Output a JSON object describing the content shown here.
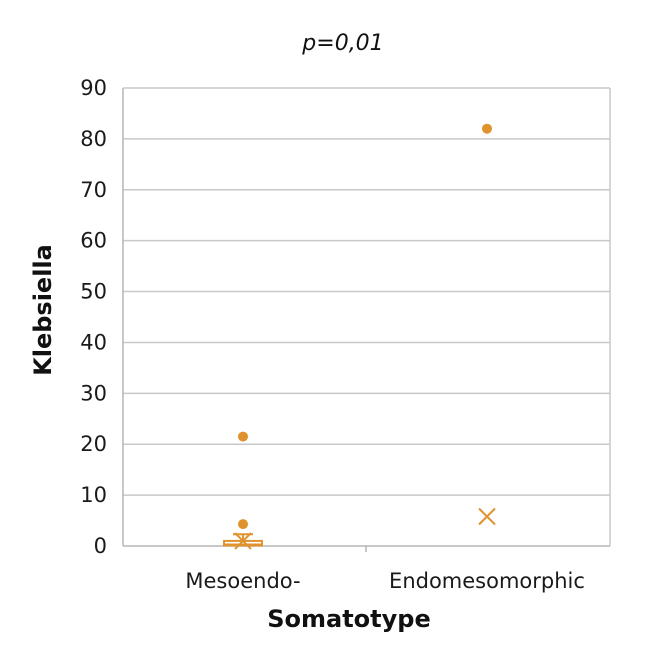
{
  "chart_data": {
    "type": "box",
    "title": "p=0,01",
    "xlabel": "Somatotype",
    "ylabel": "Klebsiella",
    "categories": [
      "Mesoendo-",
      "Endomesomorphic"
    ],
    "ylim": [
      0,
      90
    ],
    "yticks": [
      0,
      10,
      20,
      30,
      40,
      50,
      60,
      70,
      80,
      90
    ],
    "grid": true,
    "legend": "none",
    "color": "#E0922F",
    "series": [
      {
        "category": "Mesoendo-",
        "box": {
          "q1": 0.1,
          "median": 0.3,
          "q3": 1.0
        },
        "whisker_low": 0,
        "whisker_high": 2.3,
        "mean": 1.0,
        "outliers": [
          4.3,
          21.5
        ]
      },
      {
        "category": "Endomesomorphic",
        "mean": 5.8,
        "outliers": [
          82
        ]
      }
    ]
  }
}
